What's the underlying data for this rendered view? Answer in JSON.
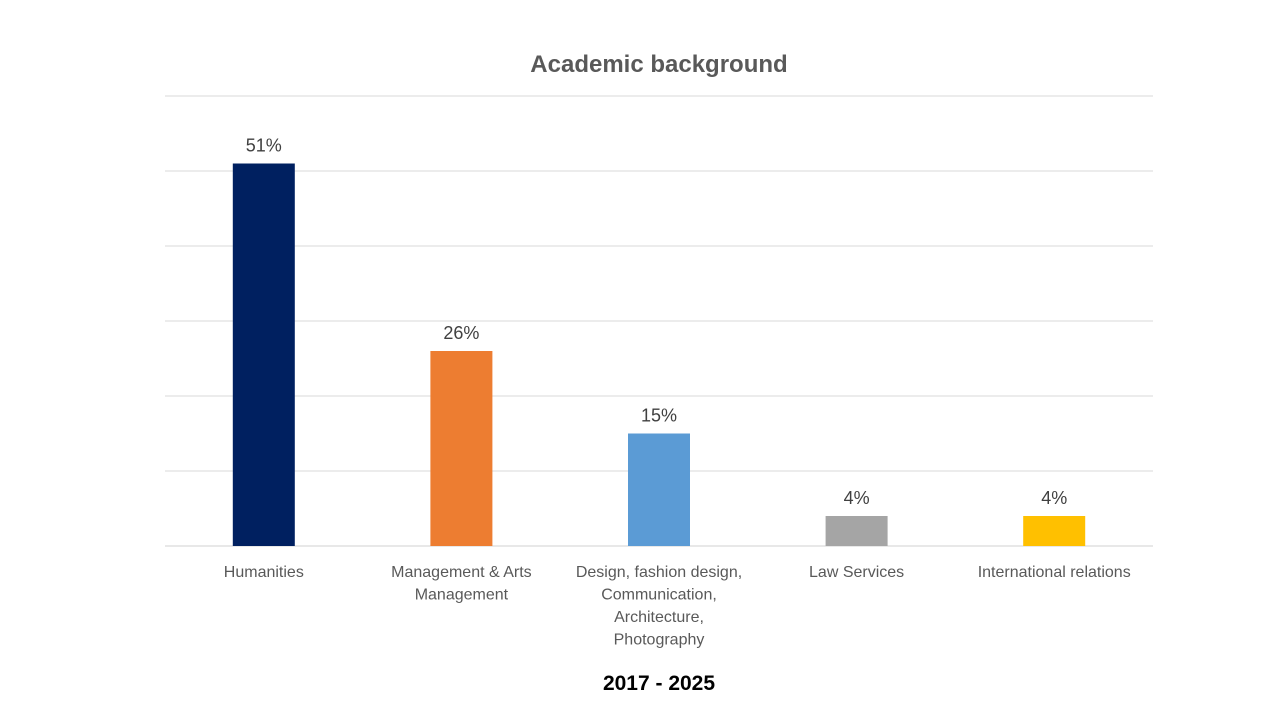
{
  "chart_data": {
    "type": "bar",
    "title": "Academic background",
    "subtitle_bottom": "2017 - 2025",
    "categories": [
      [
        "Humanities"
      ],
      [
        "Management & Arts",
        "Management"
      ],
      [
        "Design, fashion design,",
        "Communication,",
        "Architecture,",
        "Photography"
      ],
      [
        "Law Services"
      ],
      [
        "International relations"
      ]
    ],
    "values": [
      51,
      26,
      15,
      4,
      4
    ],
    "value_labels": [
      "51%",
      "26%",
      "15%",
      "4%",
      "4%"
    ],
    "colors": [
      "#002060",
      "#ED7D31",
      "#5B9BD5",
      "#A5A5A5",
      "#FFC000"
    ],
    "ylim": [
      0,
      60
    ],
    "grid": true,
    "legend": "none",
    "xlabel": "",
    "ylabel": ""
  }
}
